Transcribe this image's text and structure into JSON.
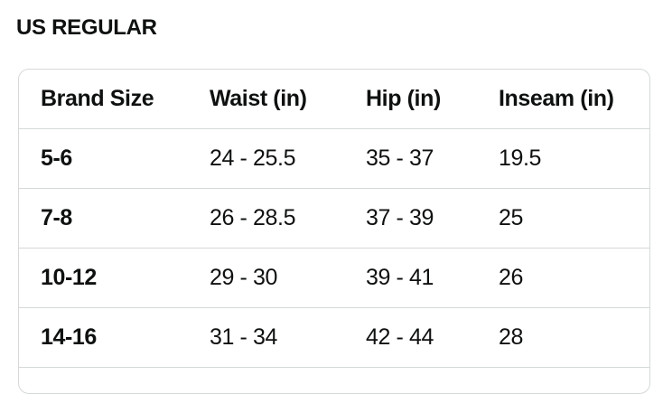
{
  "title": "US REGULAR",
  "table": {
    "headers": [
      "Brand Size",
      "Waist (in)",
      "Hip (in)",
      "Inseam (in)"
    ],
    "rows": [
      [
        "5-6",
        "24 - 25.5",
        "35 - 37",
        "19.5"
      ],
      [
        "7-8",
        "26 - 28.5",
        "37 - 39",
        "25"
      ],
      [
        "10-12",
        "29 - 30",
        "39 - 41",
        "26"
      ],
      [
        "14-16",
        "31 - 34",
        "42 - 44",
        "28"
      ]
    ]
  }
}
